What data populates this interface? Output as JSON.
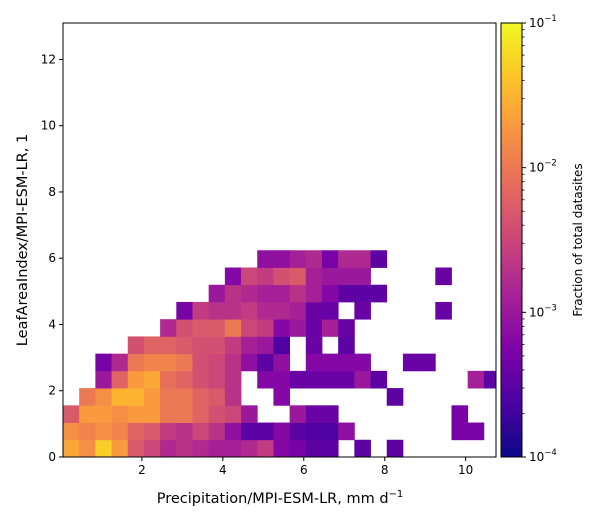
{
  "chart_data": {
    "type": "heatmap",
    "xlabel": "Precipitation/MPI-ESM-LR,  mm d",
    "xlabel_exponent": "−1",
    "ylabel": "LeafAreaIndex/MPI-ESM-LR,  1",
    "colorbar_label": "Fraction of total datasites",
    "colormap": "plasma",
    "scale": "log",
    "xlim": [
      0.05,
      10.75
    ],
    "ylim": [
      0,
      13.1
    ],
    "x_ticks": [
      2,
      4,
      6,
      8,
      10
    ],
    "y_ticks": [
      0,
      2,
      4,
      6,
      8,
      10,
      12
    ],
    "colorbar_range": [
      0.0001,
      0.1
    ],
    "colorbar_ticks": [
      {
        "base": "10",
        "exp": "−1",
        "value": 0.1
      },
      {
        "base": "10",
        "exp": "−2",
        "value": 0.01
      },
      {
        "base": "10",
        "exp": "−3",
        "value": 0.001
      },
      {
        "base": "10",
        "exp": "−4",
        "value": 0.0001
      }
    ],
    "bin_width_x": 0.4,
    "bin_width_y": 0.52,
    "x_bin_start": 0.05,
    "grid": "log10 fraction per cell; rows from y=0 upward, columns from x=0.05; null = empty",
    "log10_fraction": [
      [
        -1.6,
        -1.8,
        -1.3,
        -1.7,
        -2.3,
        -2.5,
        -2.8,
        -2.7,
        -2.8,
        -2.9,
        -2.9,
        -2.8,
        -2.6,
        -3.2,
        -3.3,
        -3.5,
        -3.5,
        null,
        -3.5,
        null,
        -3.5,
        null,
        null,
        null,
        null,
        null,
        null
      ],
      [
        -1.8,
        -1.9,
        -1.8,
        -1.9,
        -2.2,
        -2.3,
        -2.6,
        -2.7,
        -2.5,
        -2.7,
        -3.1,
        -3.5,
        -3.5,
        -3.2,
        -3.5,
        -3.6,
        -3.6,
        -3.1,
        null,
        null,
        null,
        null,
        null,
        null,
        -3.3,
        -3.3,
        null
      ],
      [
        -2.3,
        -1.7,
        -1.7,
        -1.8,
        -1.7,
        -1.7,
        -2.0,
        -2.0,
        -2.2,
        -2.4,
        -2.5,
        -3.0,
        null,
        null,
        -3.0,
        -3.4,
        -3.4,
        null,
        null,
        null,
        null,
        null,
        null,
        null,
        -3.3,
        null,
        null
      ],
      [
        null,
        -2.0,
        -1.8,
        -1.5,
        -1.5,
        -1.7,
        -2.0,
        -2.0,
        -2.2,
        -2.3,
        -2.7,
        null,
        null,
        -3.2,
        null,
        null,
        null,
        null,
        null,
        null,
        -3.5,
        null,
        null,
        null,
        null,
        null,
        null
      ],
      [
        null,
        null,
        -3.0,
        -2.2,
        -1.7,
        -1.6,
        -2.1,
        -2.2,
        -2.4,
        -2.5,
        -2.7,
        null,
        -3.2,
        -3.2,
        -3.4,
        -3.4,
        -3.4,
        -3.4,
        -3.0,
        -3.5,
        null,
        null,
        null,
        null,
        null,
        -2.9,
        -3.5
      ],
      [
        null,
        null,
        -3.3,
        -2.8,
        -2.0,
        -1.9,
        -1.9,
        -2.0,
        -2.4,
        -2.5,
        -2.7,
        -3.1,
        -3.5,
        -3.1,
        null,
        -3.2,
        -3.2,
        -3.2,
        -3.2,
        null,
        null,
        -3.4,
        -3.4,
        null,
        null,
        null,
        null
      ],
      [
        null,
        null,
        null,
        null,
        -2.4,
        -2.2,
        -2.2,
        -2.3,
        -2.4,
        -2.4,
        -2.6,
        -2.9,
        -3.0,
        -3.6,
        null,
        -3.4,
        null,
        -3.5,
        null,
        null,
        null,
        null,
        null,
        null,
        null,
        null,
        null
      ],
      [
        null,
        null,
        null,
        null,
        null,
        null,
        -2.8,
        -2.4,
        -2.3,
        -2.3,
        -2.0,
        -2.5,
        -2.6,
        -3.2,
        -3.0,
        -3.4,
        -2.9,
        -3.4,
        null,
        null,
        null,
        null,
        null,
        null,
        null,
        null,
        null
      ],
      [
        null,
        null,
        null,
        null,
        null,
        null,
        null,
        -3.3,
        -2.6,
        -2.7,
        -2.7,
        -2.6,
        -2.8,
        -2.8,
        -2.9,
        -3.4,
        -3.4,
        null,
        -3.4,
        null,
        null,
        null,
        null,
        -3.4,
        null,
        null,
        null
      ],
      [
        null,
        null,
        null,
        null,
        null,
        null,
        null,
        null,
        null,
        -3.0,
        -2.7,
        -2.8,
        -2.9,
        -2.9,
        -2.7,
        -2.9,
        -3.2,
        -3.5,
        -3.5,
        -3.5,
        null,
        null,
        null,
        null,
        null,
        null,
        null
      ],
      [
        null,
        null,
        null,
        null,
        null,
        null,
        null,
        null,
        null,
        null,
        -3.2,
        -2.5,
        -2.6,
        -2.4,
        -2.3,
        -2.9,
        -3.0,
        -3.0,
        -3.0,
        null,
        null,
        null,
        null,
        -3.4,
        null,
        null,
        null
      ],
      [
        null,
        null,
        null,
        null,
        null,
        null,
        null,
        null,
        null,
        null,
        null,
        null,
        -3.1,
        -3.1,
        -2.9,
        -2.8,
        -3.3,
        -2.8,
        -2.8,
        -3.5,
        null,
        null,
        null,
        null,
        null,
        null,
        null
      ]
    ]
  }
}
